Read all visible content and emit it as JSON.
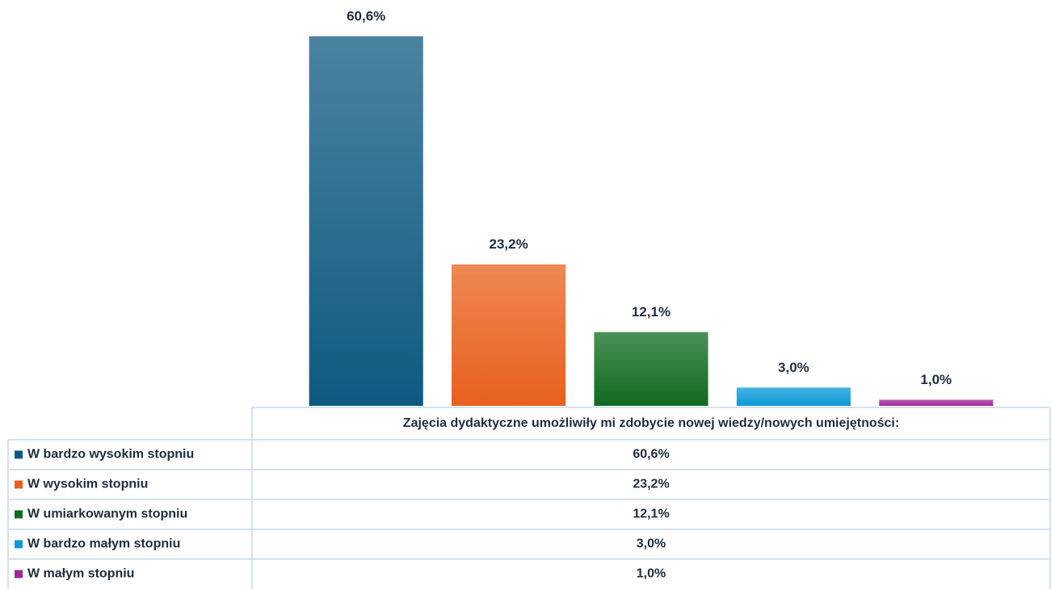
{
  "chart_data": {
    "type": "bar",
    "categories": [
      "Zajęcia dydaktyczne umożliwiły mi zdobycie nowej wiedzy/nowych umiejętności:"
    ],
    "series": [
      {
        "name": "W bardzo wysokim stopniu",
        "color": "#0e5a80",
        "values": [
          60.6
        ],
        "value_labels": [
          "60,6%"
        ]
      },
      {
        "name": "W wysokim stopniu",
        "color": "#e8601c",
        "values": [
          23.2
        ],
        "value_labels": [
          "23,2%"
        ]
      },
      {
        "name": "W umiarkowanym stopniu",
        "color": "#0f6b1f",
        "values": [
          12.1
        ],
        "value_labels": [
          "12,1%"
        ]
      },
      {
        "name": "W bardzo małym stopniu",
        "color": "#0a9ad8",
        "values": [
          3.0
        ],
        "value_labels": [
          "3,0%"
        ]
      },
      {
        "name": "W małym stopniu",
        "color": "#a0289a",
        "values": [
          1.0
        ],
        "value_labels": [
          "1,0%"
        ]
      }
    ]
  }
}
